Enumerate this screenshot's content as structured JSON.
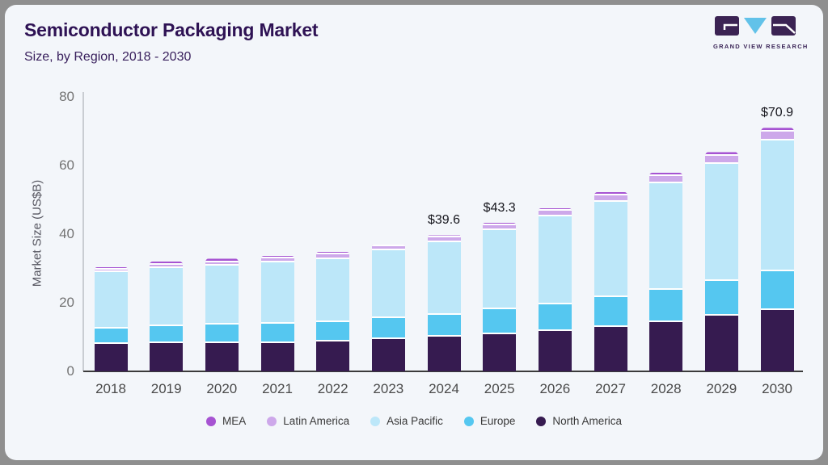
{
  "header": {
    "title": "Semiconductor Packaging Market",
    "subtitle": "Size, by Region, 2018 - 2030"
  },
  "logo": {
    "text": "GRAND VIEW RESEARCH",
    "brand_purple": "#3b2353",
    "brand_blue": "#62c2e9"
  },
  "chart_data": {
    "type": "bar",
    "stacked": true,
    "title": "Semiconductor Packaging Market",
    "subtitle": "Size, by Region, 2018 - 2030",
    "ylabel": "Market Size (US$B)",
    "ylim": [
      0,
      80
    ],
    "yticks": [
      0,
      20,
      40,
      60,
      80
    ],
    "grid": false,
    "legend_position": "bottom",
    "categories": [
      "2018",
      "2019",
      "2020",
      "2021",
      "2022",
      "2023",
      "2024",
      "2025",
      "2026",
      "2027",
      "2028",
      "2029",
      "2030"
    ],
    "series": [
      {
        "name": "North America",
        "color": "#361b50",
        "values": [
          7.9,
          8.2,
          8.3,
          8.3,
          8.6,
          9.4,
          10.0,
          10.9,
          11.8,
          13.0,
          14.3,
          16.1,
          17.9
        ]
      },
      {
        "name": "Europe",
        "color": "#55c7f0",
        "values": [
          4.6,
          5.0,
          5.4,
          5.5,
          5.7,
          6.0,
          6.5,
          7.1,
          7.8,
          8.7,
          9.4,
          10.3,
          11.3
        ]
      },
      {
        "name": "Asia Pacific",
        "color": "#bce7f9",
        "values": [
          16.3,
          16.8,
          17.0,
          17.9,
          18.3,
          19.8,
          21.0,
          23.2,
          25.5,
          27.7,
          31.1,
          34.0,
          38.0
        ]
      },
      {
        "name": "Latin America",
        "color": "#cda8ea",
        "values": [
          0.8,
          1.1,
          1.1,
          1.2,
          1.5,
          1.2,
          1.4,
          1.4,
          1.6,
          1.9,
          2.1,
          2.3,
          2.6
        ]
      },
      {
        "name": "MEA",
        "color": "#a653d2",
        "values": [
          0.7,
          0.9,
          1.0,
          0.7,
          0.7,
          0.6,
          0.7,
          0.7,
          0.8,
          0.9,
          1.0,
          1.1,
          1.1
        ]
      }
    ],
    "totals": [
      30.3,
      32.0,
      32.8,
      33.6,
      34.8,
      37.0,
      39.6,
      43.3,
      47.5,
      52.2,
      57.9,
      63.8,
      70.9
    ],
    "annotations": [
      {
        "category": "2024",
        "label": "$39.6"
      },
      {
        "category": "2025",
        "label": "$43.3"
      },
      {
        "category": "2030",
        "label": "$70.9"
      }
    ]
  }
}
